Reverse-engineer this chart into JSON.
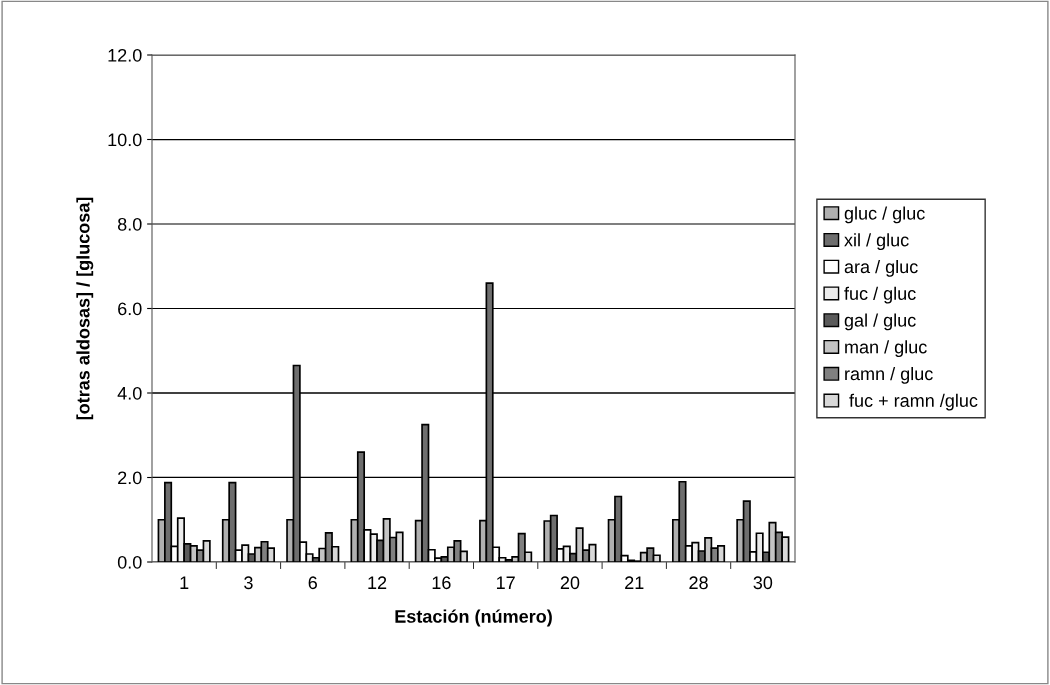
{
  "chart_data": {
    "type": "bar",
    "xlabel": "Estación (número)",
    "ylabel": "[otras aldosas] / [glucosa]",
    "categories": [
      "1",
      "3",
      "6",
      "12",
      "16",
      "17",
      "20",
      "21",
      "28",
      "30"
    ],
    "series": [
      {
        "name": "gluc / gluc",
        "color": "#b0b0b0",
        "values": [
          1.0,
          1.0,
          1.0,
          1.0,
          0.98,
          0.98,
          0.97,
          1.0,
          1.0,
          1.0
        ]
      },
      {
        "name": "xil / gluc",
        "color": "#6e6e6e",
        "values": [
          1.88,
          1.88,
          4.65,
          2.6,
          3.25,
          6.6,
          1.1,
          1.55,
          1.9,
          1.44
        ]
      },
      {
        "name": "ara / gluc",
        "color": "#ffffff",
        "values": [
          0.37,
          0.28,
          0.47,
          0.76,
          0.29,
          0.35,
          0.31,
          0.15,
          0.38,
          0.24
        ]
      },
      {
        "name": "fuc / gluc",
        "color": "#ececec",
        "values": [
          1.04,
          0.4,
          0.19,
          0.66,
          0.09,
          0.1,
          0.37,
          0.04,
          0.46,
          0.68
        ]
      },
      {
        "name": "gal / gluc",
        "color": "#5a5a5a",
        "values": [
          0.43,
          0.19,
          0.1,
          0.51,
          0.12,
          0.05,
          0.2,
          0.02,
          0.26,
          0.23
        ]
      },
      {
        "name": "man / gluc",
        "color": "#c4c4c4",
        "values": [
          0.38,
          0.34,
          0.32,
          1.02,
          0.35,
          0.12,
          0.8,
          0.22,
          0.57,
          0.93
        ]
      },
      {
        "name": "ramn / gluc",
        "color": "#808080",
        "values": [
          0.28,
          0.48,
          0.69,
          0.58,
          0.5,
          0.67,
          0.28,
          0.33,
          0.33,
          0.7
        ]
      },
      {
        "name": " fuc + ramn /gluc",
        "color": "#d8d8d8",
        "values": [
          0.5,
          0.33,
          0.36,
          0.7,
          0.25,
          0.23,
          0.41,
          0.16,
          0.38,
          0.59
        ]
      }
    ],
    "ylim": [
      0,
      12
    ],
    "yticks": [
      {
        "value": 0,
        "label": "0.0"
      },
      {
        "value": 2,
        "label": "2.0"
      },
      {
        "value": 4,
        "label": "4.0"
      },
      {
        "value": 6,
        "label": "6.0"
      },
      {
        "value": 8,
        "label": "8.0"
      },
      {
        "value": 10,
        "label": "10.0"
      },
      {
        "value": 12,
        "label": "12.0"
      }
    ],
    "grid": "y",
    "legend": "right"
  }
}
